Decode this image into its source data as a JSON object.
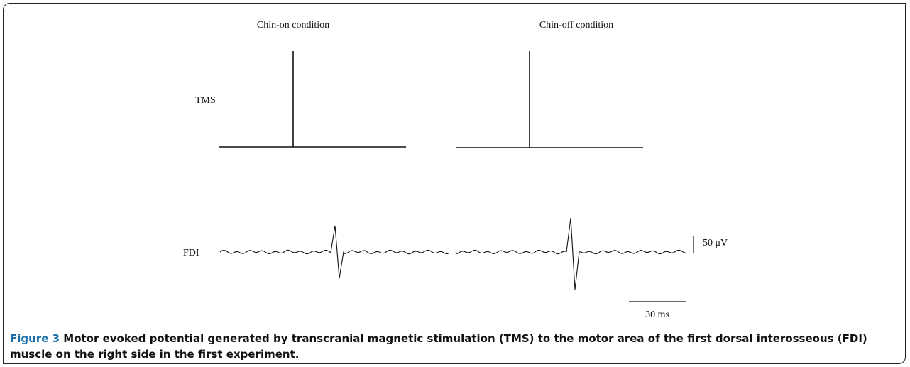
{
  "figure": {
    "conditions": [
      "Chin-on condition",
      "Chin-off condition"
    ],
    "rows": [
      "TMS",
      "FDI"
    ],
    "scale": {
      "amplitude": "50 μV",
      "time": "30 ms"
    },
    "caption": {
      "label": "Figure 3",
      "text": "Motor evoked potential generated by transcranial magnetic stimulation (TMS) to the motor area of the first dorsal interosseous (FDI) muscle on the right side in the first experiment."
    }
  }
}
